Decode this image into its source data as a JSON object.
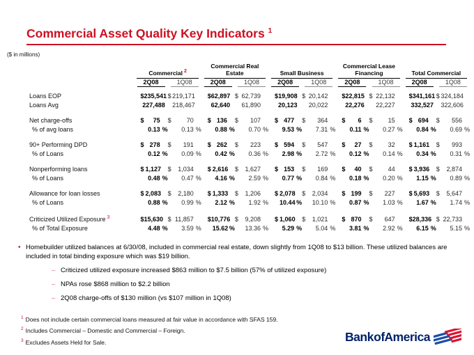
{
  "title": {
    "text": "Commercial Asset Quality Key Indicators",
    "footnote_marker": "1"
  },
  "units_label": "($ in millions)",
  "table": {
    "groups": [
      {
        "label": "Commercial",
        "footnote_marker": "2",
        "columns": [
          "2Q08",
          "1Q08"
        ]
      },
      {
        "label": "Commercial Real Estate",
        "footnote_marker": "",
        "columns": [
          "2Q08",
          "1Q08"
        ]
      },
      {
        "label": "Small Business",
        "footnote_marker": "",
        "columns": [
          "2Q08",
          "1Q08"
        ]
      },
      {
        "label": "Commercial Lease Financing",
        "footnote_marker": "",
        "columns": [
          "2Q08",
          "1Q08"
        ]
      },
      {
        "label": "Total Commercial",
        "footnote_marker": "",
        "columns": [
          "2Q08",
          "1Q08"
        ]
      }
    ],
    "rows": [
      {
        "label": "Loans EOP",
        "footnote_marker": "",
        "type": "dollar",
        "gap_before": false,
        "values": [
          "235,541",
          "219,171",
          "62,897",
          "62,739",
          "19,908",
          "20,142",
          "22,815",
          "22,132",
          "341,161",
          "324,184"
        ]
      },
      {
        "label": "Loans Avg",
        "footnote_marker": "",
        "type": "plain",
        "gap_before": false,
        "values": [
          "227,488",
          "218,467",
          "62,640",
          "61,890",
          "20,123",
          "20,022",
          "22,276",
          "22,227",
          "332,527",
          "322,606"
        ]
      },
      {
        "label": "Net charge-offs",
        "footnote_marker": "",
        "type": "dollar",
        "gap_before": true,
        "values": [
          "75",
          "70",
          "136",
          "107",
          "477",
          "364",
          "6",
          "15",
          "694",
          "556"
        ]
      },
      {
        "label": "% of avg loans",
        "footnote_marker": "",
        "type": "percent",
        "gap_before": false,
        "values": [
          "0.13",
          "0.13",
          "0.88",
          "0.70",
          "9.53",
          "7.31",
          "0.11",
          "0.27",
          "0.84",
          "0.69"
        ]
      },
      {
        "label": "90+ Performing DPD",
        "footnote_marker": "",
        "type": "dollar",
        "gap_before": true,
        "values": [
          "278",
          "191",
          "262",
          "223",
          "594",
          "547",
          "27",
          "32",
          "1,161",
          "993"
        ]
      },
      {
        "label": "% of Loans",
        "footnote_marker": "",
        "type": "percent",
        "gap_before": false,
        "values": [
          "0.12",
          "0.09",
          "0.42",
          "0.36",
          "2.98",
          "2.72",
          "0.12",
          "0.14",
          "0.34",
          "0.31"
        ]
      },
      {
        "label": "Nonperforming loans",
        "footnote_marker": "",
        "type": "dollar",
        "gap_before": true,
        "values": [
          "1,127",
          "1,034",
          "2,616",
          "1,627",
          "153",
          "169",
          "40",
          "44",
          "3,936",
          "2,874"
        ]
      },
      {
        "label": "% of Loans",
        "footnote_marker": "",
        "type": "percent",
        "gap_before": false,
        "values": [
          "0.48",
          "0.47",
          "4.16",
          "2.59",
          "0.77",
          "0.84",
          "0.18",
          "0.20",
          "1.15",
          "0.89"
        ]
      },
      {
        "label": "Allowance for loan losses",
        "footnote_marker": "",
        "type": "dollar",
        "gap_before": true,
        "values": [
          "2,083",
          "2,180",
          "1,333",
          "1,206",
          "2,078",
          "2,034",
          "199",
          "227",
          "5,693",
          "5,647"
        ]
      },
      {
        "label": "% of Loans",
        "footnote_marker": "",
        "type": "percent",
        "gap_before": false,
        "values": [
          "0.88",
          "0.99",
          "2.12",
          "1.92",
          "10.44",
          "10.10",
          "0.87",
          "1.03",
          "1.67",
          "1.74"
        ]
      },
      {
        "label": "Criticized Utilized Exposure",
        "footnote_marker": "3",
        "type": "dollar",
        "gap_before": true,
        "values": [
          "15,630",
          "11,857",
          "10,776",
          "9,208",
          "1,060",
          "1,021",
          "870",
          "647",
          "28,336",
          "22,733"
        ]
      },
      {
        "label": "% of Total Exposure",
        "footnote_marker": "",
        "type": "percent",
        "gap_before": false,
        "values": [
          "4.48",
          "3.59",
          "15.62",
          "13.36",
          "5.29",
          "5.04",
          "3.81",
          "2.92",
          "6.15",
          "5.15"
        ]
      }
    ]
  },
  "bullets": {
    "main": "Homebuilder utilized balances at 6/30/08, included in commercial real estate, down slightly from 1Q08 to $13 billion. These utilized balances are included in total binding exposure which was $19 billion.",
    "sub": [
      "Criticized utilized exposure increased $863 million to $7.5 billion (57% of utilized exposure)",
      "NPAs rose $868 million to $2.2 billion",
      "2Q08 charge-offs of $130 million (vs $107 million in 1Q08)"
    ]
  },
  "footnotes": [
    {
      "marker": "1",
      "text": "Does not include certain commercial loans measured at fair value in accordance with SFAS 159."
    },
    {
      "marker": "2",
      "text": "Includes Commercial – Domestic and Commercial – Foreign."
    },
    {
      "marker": "3",
      "text": "Excludes Assets Held for Sale."
    }
  ],
  "logo": {
    "text": "Bank of America"
  },
  "colors": {
    "accent_red": "#CC1122",
    "logo_navy": "#012169",
    "flag_blue": "#1B4FA5",
    "flag_red": "#DC1431"
  }
}
